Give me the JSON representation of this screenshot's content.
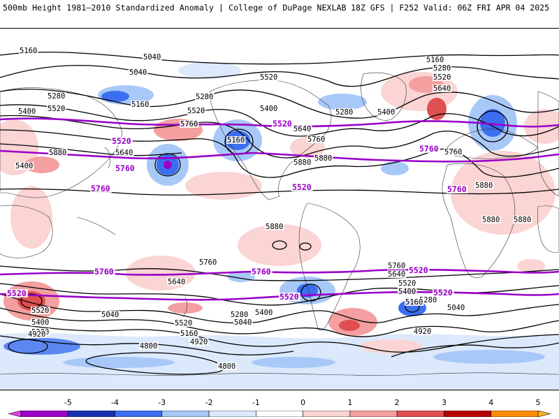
{
  "header": {
    "title_left": "500mb Height 1981–2010 Standardized Anomaly | College of DuPage NEXLAB",
    "title_right": "18Z GFS | F252 Valid: 06Z FRI APR 04 2025"
  },
  "contour_labels": {
    "black": [
      "5160",
      "5040",
      "5040",
      "5280",
      "5520",
      "5400",
      "5160",
      "5280",
      "5520",
      "5760",
      "5640",
      "5880",
      "5400",
      "5160",
      "5520",
      "5400",
      "5280",
      "5880",
      "5640",
      "5760",
      "5160",
      "5280",
      "5520",
      "5640",
      "5400",
      "5760",
      "5880",
      "5880",
      "5880",
      "5880",
      "5880",
      "5760",
      "5640",
      "5520",
      "5400",
      "5280",
      "5040",
      "4920",
      "4800",
      "4800",
      "5520",
      "5400",
      "5280",
      "5040",
      "5160",
      "4920",
      "5640",
      "5760",
      "5520",
      "5400",
      "5280",
      "5040",
      "4920",
      "5160"
    ],
    "purple": [
      "5520",
      "5760",
      "5520",
      "5760",
      "5520",
      "5760",
      "5760",
      "5760",
      "5760",
      "5520",
      "5520",
      "5520",
      "5520"
    ]
  },
  "colorbar": {
    "ticks": [
      "-5",
      "-4",
      "-3",
      "-2",
      "-1",
      "0",
      "1",
      "2",
      "3",
      "4",
      "5"
    ],
    "colors": [
      "#e040e0",
      "#9a00c8",
      "#1a2fb0",
      "#3c6ef0",
      "#a8c8f8",
      "#dce9fc",
      "#ffffff",
      "#fbd4d4",
      "#f4a0a0",
      "#e05050",
      "#b80000",
      "#ff8c00",
      "#ffb020"
    ]
  }
}
